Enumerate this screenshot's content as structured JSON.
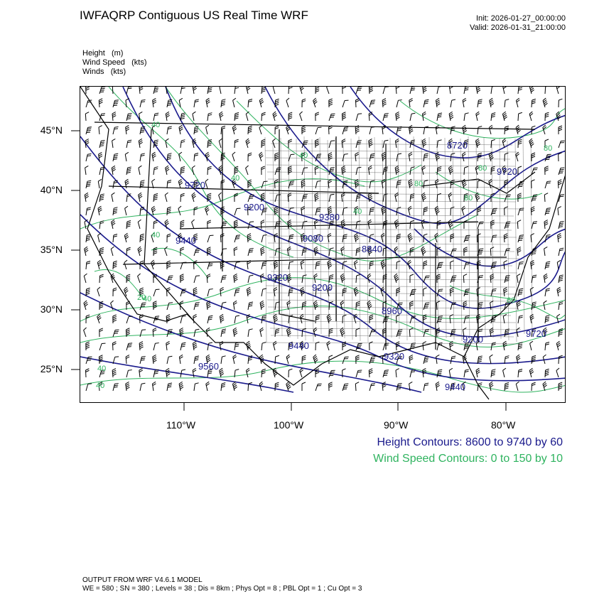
{
  "header": {
    "title": "IWFAQRP Contiguous US Real Time WRF",
    "init": "Init: 2026-01-27_00:00:00",
    "valid": "Valid: 2026-01-31_21:00:00"
  },
  "variables": [
    "Height   (m)",
    "Wind Speed   (kts)",
    "Winds   (kts)"
  ],
  "map": {
    "lat_labels": [
      "45°N",
      "40°N",
      "35°N",
      "30°N",
      "25°N"
    ],
    "lon_labels": [
      "110°W",
      "100°W",
      "90°W",
      "80°W"
    ],
    "height_labels": [
      "8720",
      "9720",
      "9720",
      "9200",
      "9380",
      "9080",
      "8840",
      "9440",
      "9320",
      "9200",
      "8960",
      "9440",
      "9320",
      "9200",
      "9720",
      "9560",
      "9440"
    ],
    "wind_labels": [
      "40",
      "40",
      "40",
      "40",
      "40",
      "80",
      "80",
      "40",
      "80",
      "60",
      "40",
      "20",
      "80",
      "40"
    ],
    "colors": {
      "height": "#1a1a8c",
      "wind_speed": "#2fb35f",
      "borders": "#000000"
    }
  },
  "legend": {
    "height": "Height Contours: 8600 to 9740 by 60",
    "wind": "Wind Speed Contours: 0 to 150 by 10"
  },
  "footer": {
    "line1": "OUTPUT FROM WRF V4.6.1 MODEL",
    "line2": "WE = 580 ; SN = 380 ; Levels = 38 ; Dis = 8km ; Phys Opt = 8 ; PBL Opt = 1 ; Cu Opt = 3"
  }
}
